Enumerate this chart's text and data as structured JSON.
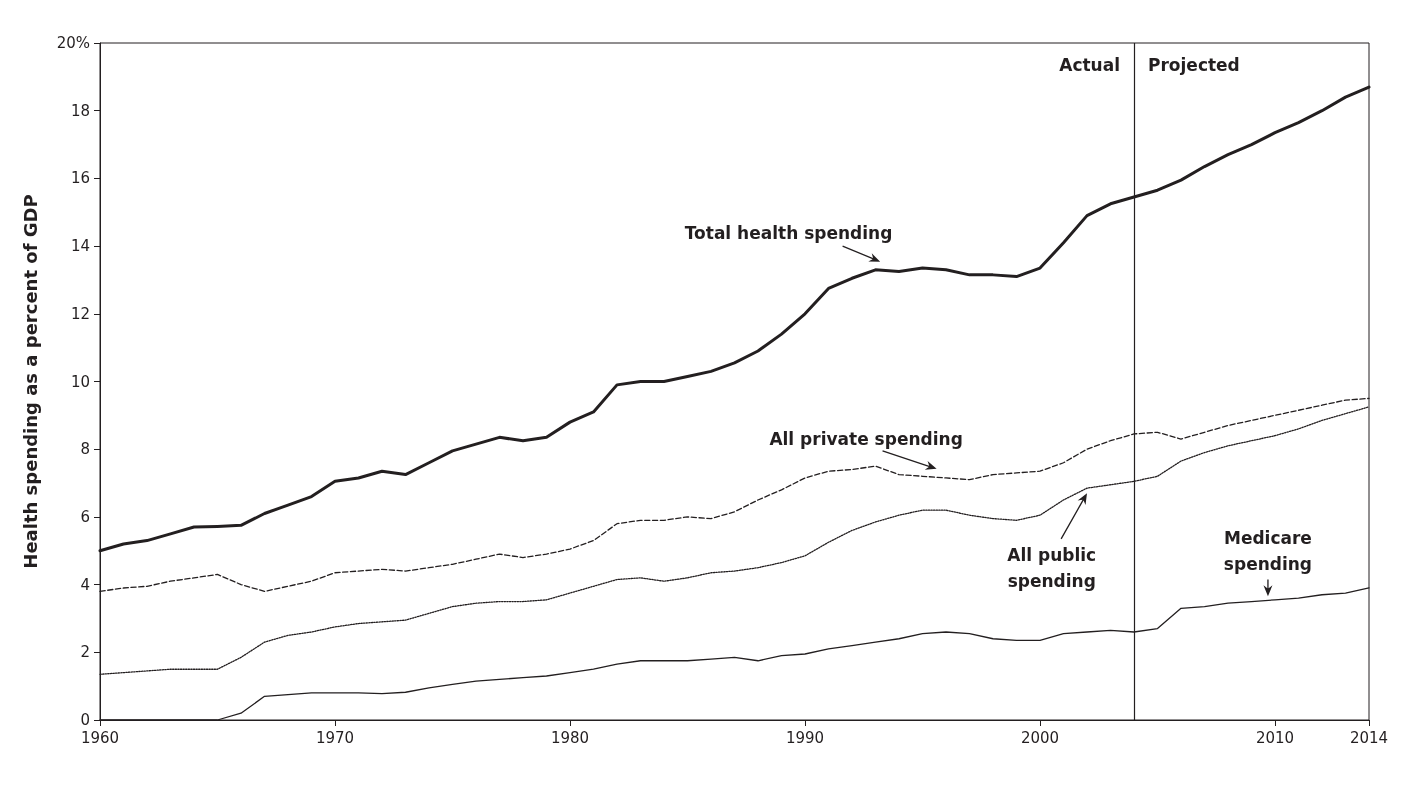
{
  "chart_data": {
    "type": "line",
    "ylabel": "Health spending as a percent of GDP",
    "x": [
      1960,
      1961,
      1962,
      1963,
      1964,
      1965,
      1966,
      1967,
      1968,
      1969,
      1970,
      1971,
      1972,
      1973,
      1974,
      1975,
      1976,
      1977,
      1978,
      1979,
      1980,
      1981,
      1982,
      1983,
      1984,
      1985,
      1986,
      1987,
      1988,
      1989,
      1990,
      1991,
      1992,
      1993,
      1994,
      1995,
      1996,
      1997,
      1998,
      1999,
      2000,
      2001,
      2002,
      2003,
      2004,
      2005,
      2006,
      2007,
      2008,
      2009,
      2010,
      2011,
      2012,
      2013,
      2014
    ],
    "series": [
      {
        "name": "Total health spending",
        "color": "#231f20",
        "line_style": "solid",
        "values": [
          5.0,
          5.2,
          5.3,
          5.5,
          5.7,
          5.72,
          5.75,
          6.1,
          6.35,
          6.6,
          7.05,
          7.15,
          7.35,
          7.25,
          7.6,
          7.95,
          8.15,
          8.35,
          8.25,
          8.35,
          8.8,
          9.1,
          9.9,
          10.0,
          10.0,
          10.15,
          10.3,
          10.55,
          10.9,
          11.4,
          12.0,
          12.75,
          13.05,
          13.3,
          13.25,
          13.35,
          13.3,
          13.15,
          13.15,
          13.1,
          13.35,
          14.1,
          14.9,
          15.25,
          15.45,
          15.65,
          15.95,
          16.35,
          16.7,
          17.0,
          17.35,
          17.65,
          18.0,
          18.4,
          18.7
        ]
      },
      {
        "name": "All private spending",
        "color": "#231f20",
        "line_style": "dashed",
        "values": [
          3.8,
          3.9,
          3.95,
          4.1,
          4.2,
          4.3,
          4.0,
          3.8,
          3.95,
          4.1,
          4.35,
          4.4,
          4.45,
          4.4,
          4.5,
          4.6,
          4.75,
          4.9,
          4.8,
          4.9,
          5.05,
          5.3,
          5.8,
          5.9,
          5.9,
          6.0,
          5.95,
          6.15,
          6.5,
          6.8,
          7.15,
          7.35,
          7.4,
          7.5,
          7.25,
          7.2,
          7.15,
          7.1,
          7.25,
          7.3,
          7.35,
          7.6,
          8.0,
          8.25,
          8.45,
          8.5,
          8.3,
          8.5,
          8.7,
          8.85,
          9.0,
          9.15,
          9.3,
          9.45,
          9.5
        ]
      },
      {
        "name": "All public spending",
        "color": "#231f20",
        "line_style": "dotted",
        "values": [
          1.35,
          1.4,
          1.45,
          1.5,
          1.5,
          1.5,
          1.85,
          2.3,
          2.5,
          2.6,
          2.75,
          2.85,
          2.9,
          2.95,
          3.15,
          3.35,
          3.45,
          3.5,
          3.5,
          3.55,
          3.75,
          3.95,
          4.15,
          4.2,
          4.1,
          4.2,
          4.35,
          4.4,
          4.5,
          4.65,
          4.85,
          5.25,
          5.6,
          5.85,
          6.05,
          6.2,
          6.2,
          6.05,
          5.95,
          5.9,
          6.05,
          6.5,
          6.85,
          6.95,
          7.05,
          7.2,
          7.65,
          7.9,
          8.1,
          8.25,
          8.4,
          8.6,
          8.85,
          9.05,
          9.25
        ]
      },
      {
        "name": "Medicare spending",
        "color": "#231f20",
        "line_style": "solid",
        "values": [
          0,
          0,
          0,
          0,
          0,
          0,
          0.2,
          0.7,
          0.75,
          0.8,
          0.8,
          0.8,
          0.78,
          0.82,
          0.95,
          1.05,
          1.15,
          1.2,
          1.25,
          1.3,
          1.4,
          1.5,
          1.65,
          1.75,
          1.75,
          1.75,
          1.8,
          1.85,
          1.75,
          1.9,
          1.95,
          2.1,
          2.2,
          2.3,
          2.4,
          2.55,
          2.6,
          2.55,
          2.4,
          2.35,
          2.35,
          2.55,
          2.6,
          2.65,
          2.6,
          2.7,
          3.3,
          3.35,
          3.45,
          3.5,
          3.55,
          3.6,
          3.7,
          3.75,
          3.9
        ]
      }
    ],
    "xlim": [
      1960,
      2014
    ],
    "xticks": [
      1960,
      1970,
      1980,
      1990,
      2000,
      2010,
      2014
    ],
    "ylim": [
      0,
      20
    ],
    "yticks": [
      0,
      2,
      4,
      6,
      8,
      10,
      12,
      14,
      16,
      18,
      {
        "value": 20,
        "label": "20%"
      }
    ],
    "ref_lines": [
      {
        "axis": "x",
        "value": 2004,
        "color": "#231f20"
      }
    ],
    "annotations": [
      "Actual",
      "Projected"
    ],
    "grid": false,
    "legend": false,
    "marker": "none"
  }
}
